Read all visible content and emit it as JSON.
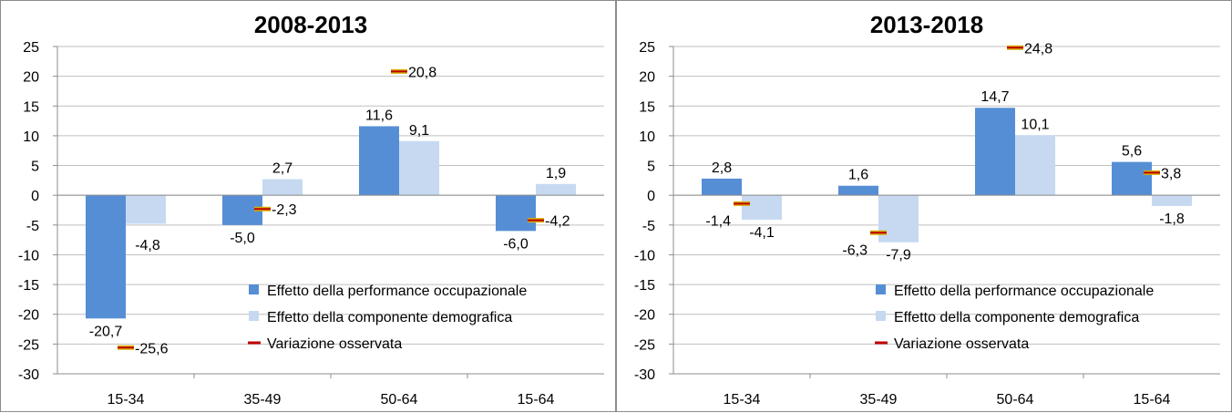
{
  "chart_data": [
    {
      "type": "bar",
      "title": "2008-2013",
      "categories": [
        "15-34",
        "35-49",
        "50-64",
        "15-64"
      ],
      "ylim": [
        -30,
        25
      ],
      "yticks": [
        25,
        20,
        15,
        10,
        5,
        0,
        -5,
        -10,
        -15,
        -20,
        -25,
        -30
      ],
      "grid": true,
      "legend_position": "bottom-right",
      "series": [
        {
          "name": "Effetto della performance occupazionale",
          "type": "bar",
          "color": "#558ed5",
          "values": [
            -20.7,
            -5.0,
            11.6,
            -6.0
          ],
          "labels": [
            "-20,7",
            "-5,0",
            "11,6",
            "-6,0"
          ]
        },
        {
          "name": "Effetto della componente demografica",
          "type": "bar",
          "color": "#c6d9f1",
          "values": [
            -4.8,
            2.7,
            9.1,
            1.9
          ],
          "labels": [
            "-4,8",
            "2,7",
            "9,1",
            "1,9"
          ]
        },
        {
          "name": "Variazione osservata",
          "type": "marker",
          "color": "#c00000",
          "values": [
            -25.6,
            -2.3,
            20.8,
            -4.2
          ],
          "labels": [
            "-25,6",
            "-2,3",
            "20,8",
            "-4,2"
          ]
        }
      ]
    },
    {
      "type": "bar",
      "title": "2013-2018",
      "categories": [
        "15-34",
        "35-49",
        "50-64",
        "15-64"
      ],
      "ylim": [
        -30,
        25
      ],
      "yticks": [
        25,
        20,
        15,
        10,
        5,
        0,
        -5,
        -10,
        -15,
        -20,
        -25,
        -30
      ],
      "grid": true,
      "legend_position": "bottom-right",
      "series": [
        {
          "name": "Effetto della performance occupazionale",
          "type": "bar",
          "color": "#558ed5",
          "values": [
            2.8,
            1.6,
            14.7,
            5.6
          ],
          "labels": [
            "2,8",
            "1,6",
            "14,7",
            "5,6"
          ]
        },
        {
          "name": "Effetto della componente demografica",
          "type": "bar",
          "color": "#c6d9f1",
          "values": [
            -4.1,
            -7.9,
            10.1,
            -1.8
          ],
          "labels": [
            "-4,1",
            "-7,9",
            "10,1",
            "-1,8"
          ]
        },
        {
          "name": "Variazione osservata",
          "type": "marker",
          "color": "#c00000",
          "values": [
            -1.4,
            -6.3,
            24.8,
            3.8
          ],
          "labels": [
            "-1,4",
            "-6,3",
            "24,8",
            "3,8"
          ]
        }
      ]
    }
  ]
}
